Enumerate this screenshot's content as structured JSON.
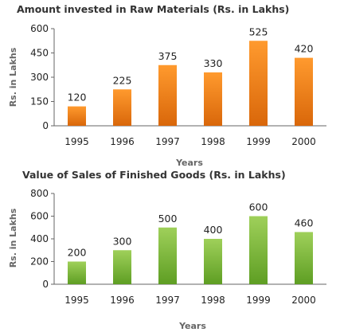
{
  "chart_data": [
    {
      "type": "bar",
      "title": "Amount invested in Raw Materials (Rs. in Lakhs)",
      "xlabel": "Years",
      "ylabel": "Rs. in Lakhs",
      "categories": [
        "1995",
        "1996",
        "1997",
        "1998",
        "1999",
        "2000"
      ],
      "values": [
        120,
        225,
        375,
        330,
        525,
        420
      ],
      "ylim": [
        0,
        600
      ],
      "yticks": [
        "0",
        "150",
        "300",
        "450",
        "600"
      ],
      "grid": false,
      "legend": "none",
      "colors": {
        "bar_top": "#ff9a2e",
        "bar_bottom": "#d9670a"
      }
    },
    {
      "type": "bar",
      "title": "Value of Sales of Finished Goods (Rs. in Lakhs)",
      "xlabel": "Years",
      "ylabel": "Rs. in Lakhs",
      "categories": [
        "1995",
        "1996",
        "1997",
        "1998",
        "1999",
        "2000"
      ],
      "values": [
        200,
        300,
        500,
        400,
        600,
        460
      ],
      "ylim": [
        0,
        800
      ],
      "yticks": [
        "0",
        "200",
        "400",
        "600",
        "800"
      ],
      "grid": false,
      "legend": "none",
      "colors": {
        "bar_top": "#9fd05a",
        "bar_bottom": "#5e9e23"
      }
    }
  ]
}
